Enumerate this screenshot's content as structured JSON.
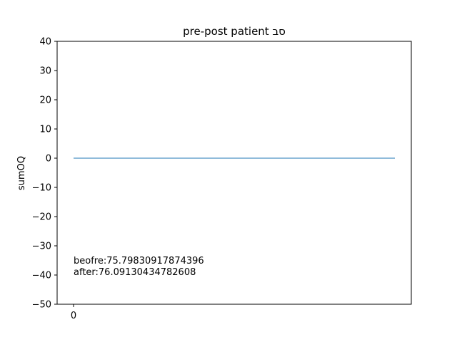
{
  "chart_data": {
    "type": "line",
    "title": "pre-post patient סב",
    "xlabel": "",
    "ylabel": "sumOQ",
    "x_ticks": [
      "0"
    ],
    "y_ticks": [
      40,
      30,
      20,
      10,
      0,
      -10,
      -20,
      -30,
      -40,
      -50
    ],
    "ylim": [
      -50,
      40
    ],
    "grid": false,
    "series": [
      {
        "x": [
          0,
          1
        ],
        "values": [
          0,
          0
        ],
        "color": "#1f77b4"
      }
    ],
    "annotations": [
      "beofre:75.79830917874396",
      "after:76.09130434782608"
    ]
  }
}
